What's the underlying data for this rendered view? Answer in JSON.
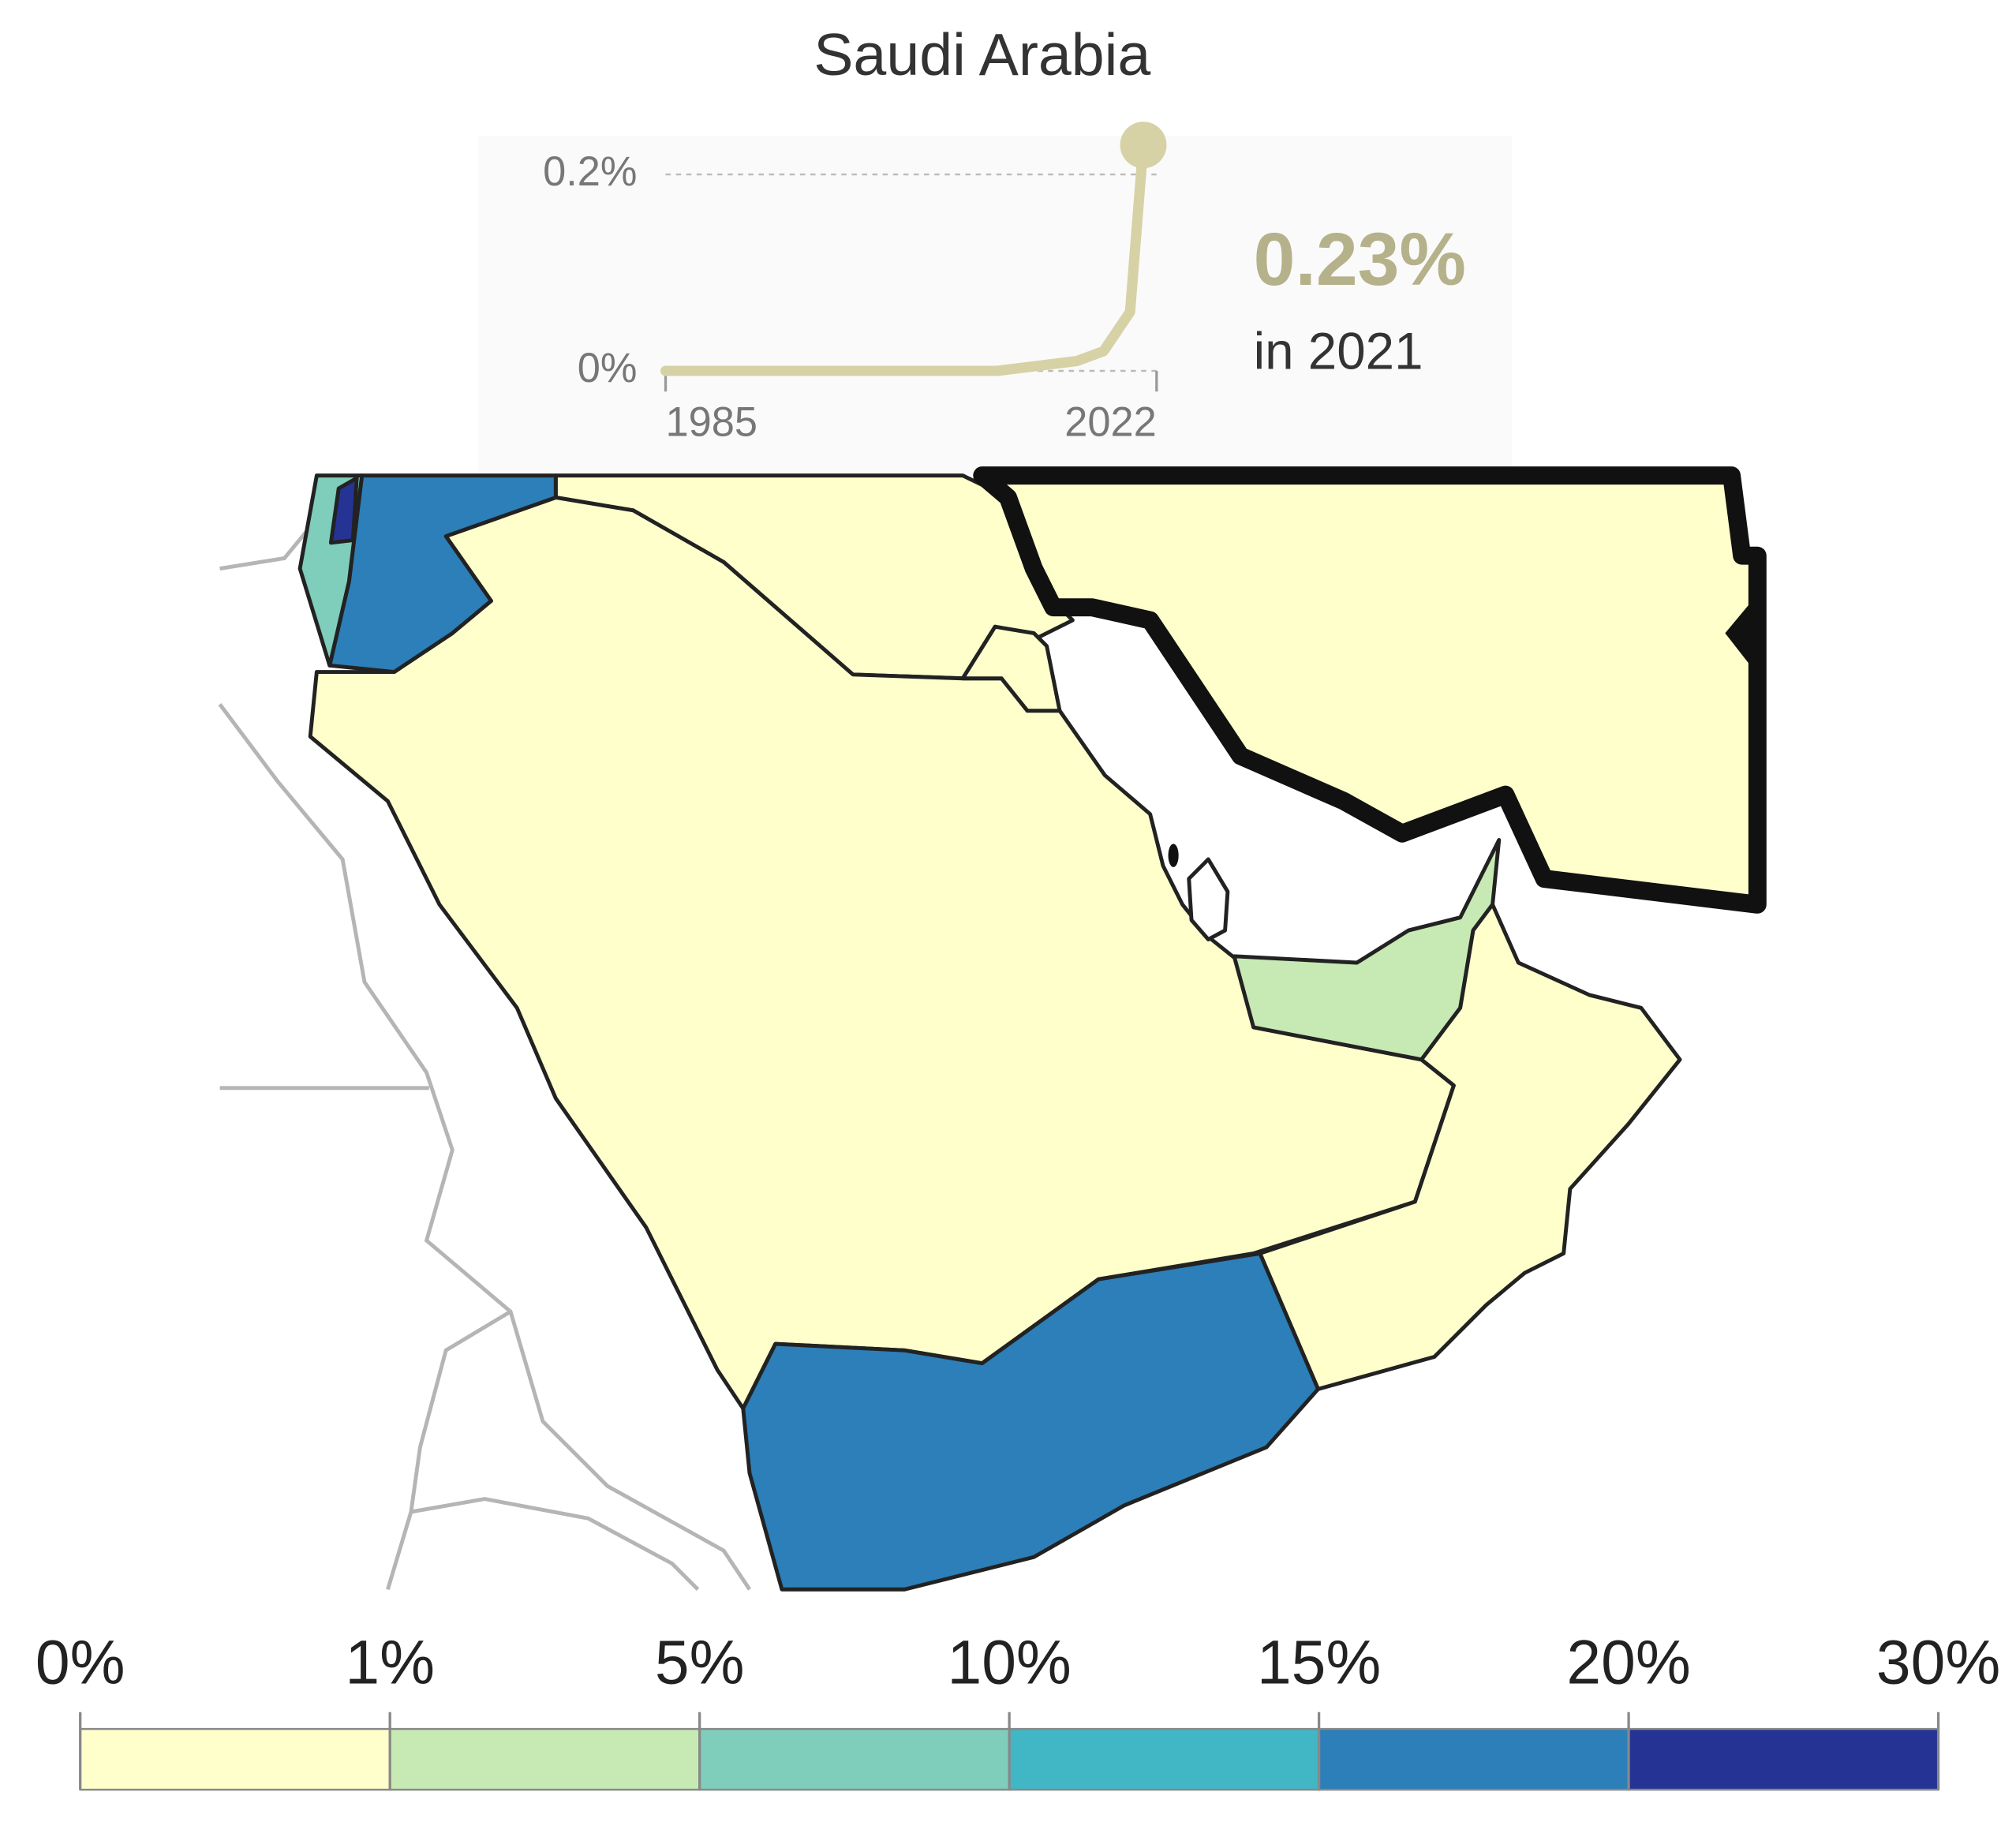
{
  "title": "Saudi Arabia",
  "sparkline": {
    "type": "line",
    "color": "#d6d2a6",
    "x": [
      1985,
      2010,
      2013,
      2016,
      2018,
      2019,
      2020,
      2021
    ],
    "values": [
      0,
      0,
      0.005,
      0.01,
      0.02,
      0.04,
      0.06,
      0.23
    ],
    "xlim": [
      1985,
      2022
    ],
    "xticks": [
      1985,
      2022
    ],
    "ylim": [
      0,
      0.2
    ],
    "yticks": [
      {
        "value": 0,
        "label": "0%"
      },
      {
        "value": 0.2,
        "label": "0.2%"
      }
    ],
    "value_label": "0.23%",
    "caption": "in 2021"
  },
  "legend": {
    "ticks": [
      {
        "value": 0,
        "label": "0%"
      },
      {
        "value": 1,
        "label": "1%"
      },
      {
        "value": 5,
        "label": "5%"
      },
      {
        "value": 10,
        "label": "10%"
      },
      {
        "value": 15,
        "label": "15%"
      },
      {
        "value": 20,
        "label": "20%"
      },
      {
        "value": 30,
        "label": "30%"
      }
    ],
    "colors": [
      "#ffffcc",
      "#c7e9b4",
      "#7fcdbb",
      "#41b6c4",
      "#2c7fb8",
      "#253494"
    ]
  }
}
